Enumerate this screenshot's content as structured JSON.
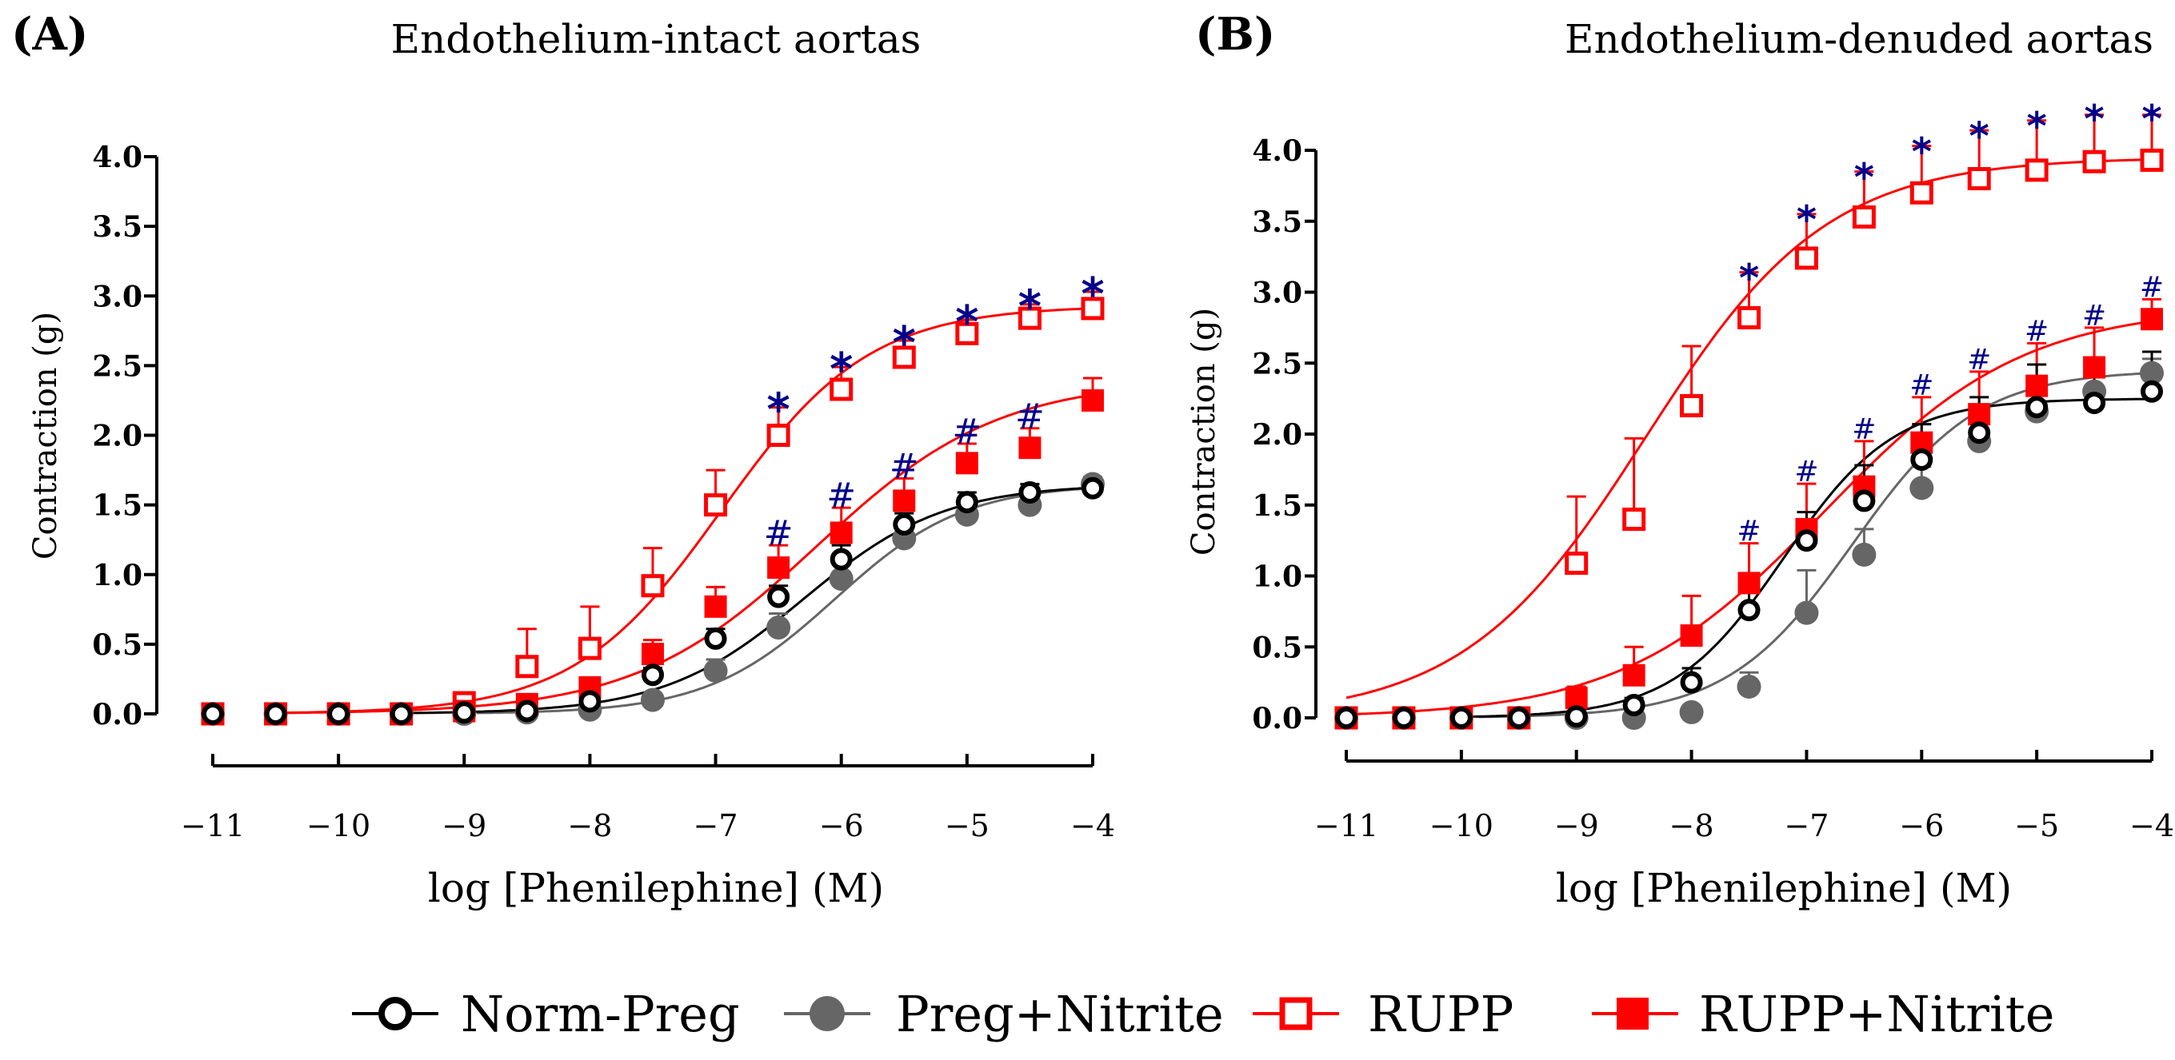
{
  "chart_data": [
    {
      "type": "line",
      "panel_label": "(A)",
      "title": "Endothelium-intact aortas",
      "xlabel": "log [Phenilephine] (M)",
      "ylabel": "Contraction (g)",
      "xlim": [
        -11,
        -4
      ],
      "ylim": [
        0,
        4.0
      ],
      "x_ticks": [
        "−11",
        "−10",
        "−9",
        "−8",
        "−7",
        "−6",
        "−5",
        "−4"
      ],
      "y_ticks": [
        "0.0",
        "0.5",
        "1.0",
        "1.5",
        "2.0",
        "2.5",
        "3.0",
        "3.5",
        "4.0"
      ],
      "x": [
        -11,
        -10.5,
        -10,
        -9.5,
        -9,
        -8.5,
        -8,
        -7.5,
        -7,
        -6.5,
        -6,
        -5.5,
        -5,
        -4.5,
        -4
      ],
      "series": [
        {
          "name": "Norm-Preg",
          "values": [
            0,
            0,
            0,
            0,
            0.01,
            0.02,
            0.09,
            0.28,
            0.54,
            0.84,
            1.11,
            1.36,
            1.52,
            1.59,
            1.62
          ],
          "errors": [
            0,
            0,
            0,
            0,
            0.01,
            0.02,
            0.04,
            0.05,
            0.07,
            0.08,
            0.1,
            0.08,
            0.07,
            0.06,
            0.05
          ],
          "fit": {
            "bottom": 0,
            "top": 1.65,
            "logEC50": -6.3,
            "hill": 0.78
          }
        },
        {
          "name": "Preg+Nitrite",
          "values": [
            0,
            0,
            0,
            0,
            0,
            0.01,
            0.03,
            0.1,
            0.31,
            0.62,
            0.97,
            1.26,
            1.43,
            1.5,
            1.65
          ],
          "errors": [
            0,
            0,
            0,
            0,
            0,
            0.01,
            0.02,
            0.04,
            0.08,
            0.1,
            0.12,
            0.1,
            0.09,
            0.08,
            0.05
          ],
          "fit": {
            "bottom": 0,
            "top": 1.65,
            "logEC50": -6.05,
            "hill": 0.85
          }
        },
        {
          "name": "RUPP",
          "values": [
            0,
            0,
            0,
            0,
            0.08,
            0.34,
            0.47,
            0.92,
            1.5,
            2.0,
            2.33,
            2.56,
            2.73,
            2.84,
            2.91
          ],
          "errors": [
            0,
            0,
            0,
            0,
            0.03,
            0.27,
            0.3,
            0.27,
            0.25,
            0.2,
            0.16,
            0.12,
            0.1,
            0.1,
            0.12
          ],
          "fit": {
            "bottom": 0,
            "top": 2.93,
            "logEC50": -6.95,
            "hill": 0.74
          }
        },
        {
          "name": "RUPP+Nitrite",
          "values": [
            0,
            0,
            0,
            0,
            0.02,
            0.07,
            0.19,
            0.43,
            0.77,
            1.05,
            1.3,
            1.53,
            1.8,
            1.91,
            2.25
          ],
          "errors": [
            0,
            0,
            0,
            0,
            0.02,
            0.04,
            0.06,
            0.1,
            0.14,
            0.16,
            0.18,
            0.16,
            0.14,
            0.14,
            0.16
          ],
          "fit": {
            "bottom": 0,
            "top": 2.4,
            "logEC50": -6.2,
            "hill": 0.6
          }
        }
      ],
      "annotations": [
        {
          "x": -6.5,
          "y": 2.2,
          "text": "*"
        },
        {
          "x": -6,
          "y": 2.49,
          "text": "*"
        },
        {
          "x": -5.5,
          "y": 2.68,
          "text": "*"
        },
        {
          "x": -5,
          "y": 2.83,
          "text": "*"
        },
        {
          "x": -4.5,
          "y": 2.94,
          "text": "*"
        },
        {
          "x": -4,
          "y": 3.03,
          "text": "*"
        },
        {
          "x": -6.5,
          "y": 1.21,
          "text": "#"
        },
        {
          "x": -6,
          "y": 1.48,
          "text": "#"
        },
        {
          "x": -5.5,
          "y": 1.69,
          "text": "#"
        },
        {
          "x": -5,
          "y": 1.94,
          "text": "#"
        },
        {
          "x": -4.5,
          "y": 2.05,
          "text": "#"
        }
      ]
    },
    {
      "type": "line",
      "panel_label": "(B)",
      "title": "Endothelium-denuded aortas",
      "xlabel": "log [Phenilephine] (M)",
      "ylabel": "Contraction (g)",
      "xlim": [
        -11,
        -4
      ],
      "ylim": [
        0,
        4.0
      ],
      "x_ticks": [
        "−11",
        "−10",
        "−9",
        "−8",
        "−7",
        "−6",
        "−5",
        "−4"
      ],
      "y_ticks": [
        "0.0",
        "0.5",
        "1.0",
        "1.5",
        "2.0",
        "2.5",
        "3.0",
        "3.5",
        "4.0"
      ],
      "x": [
        -11,
        -10.5,
        -10,
        -9.5,
        -9,
        -8.5,
        -8,
        -7.5,
        -7,
        -6.5,
        -6,
        -5.5,
        -5,
        -4.5,
        -4
      ],
      "series": [
        {
          "name": "Norm-Preg",
          "values": [
            0,
            0,
            0,
            0,
            0.01,
            0.09,
            0.25,
            0.76,
            1.25,
            1.53,
            1.82,
            2.01,
            2.19,
            2.22,
            2.3
          ],
          "errors": [
            0,
            0,
            0,
            0,
            0.02,
            0.05,
            0.1,
            0.18,
            0.2,
            0.25,
            0.25,
            0.25,
            0.3,
            0.3,
            0.28
          ],
          "fit": {
            "bottom": 0,
            "top": 2.25,
            "logEC50": -7.2,
            "hill": 0.9
          }
        },
        {
          "name": "Preg+Nitrite",
          "values": [
            0,
            0,
            0,
            0,
            0,
            0,
            0.04,
            0.22,
            0.74,
            1.15,
            1.62,
            1.95,
            2.16,
            2.3,
            2.43
          ],
          "errors": [
            0,
            0,
            0,
            0,
            0,
            0,
            0.02,
            0.1,
            0.3,
            0.18,
            0.15,
            0.15,
            0.15,
            0.12,
            0.1
          ],
          "fit": {
            "bottom": 0,
            "top": 2.45,
            "logEC50": -6.6,
            "hill": 0.8
          }
        },
        {
          "name": "RUPP",
          "values": [
            0,
            0,
            0,
            0,
            1.09,
            1.4,
            2.2,
            2.82,
            3.24,
            3.53,
            3.7,
            3.8,
            3.86,
            3.92,
            3.93
          ],
          "errors": [
            0,
            0,
            0,
            0,
            0.47,
            0.57,
            0.42,
            0.32,
            0.31,
            0.32,
            0.33,
            0.34,
            0.35,
            0.33,
            0.32
          ],
          "fit": {
            "bottom": 0,
            "top": 3.95,
            "logEC50": -8.4,
            "hill": 0.55
          }
        },
        {
          "name": "RUPP+Nitrite",
          "values": [
            0,
            0,
            0,
            0,
            0.14,
            0.3,
            0.58,
            0.95,
            1.33,
            1.63,
            1.94,
            2.14,
            2.34,
            2.47,
            2.81
          ],
          "errors": [
            0,
            0,
            0,
            0,
            0.08,
            0.2,
            0.28,
            0.28,
            0.32,
            0.32,
            0.32,
            0.3,
            0.3,
            0.28,
            0.14
          ],
          "fit": {
            "bottom": 0,
            "top": 2.9,
            "logEC50": -6.85,
            "hill": 0.5
          }
        }
      ],
      "annotations": [
        {
          "x": -7.5,
          "y": 3.13,
          "text": "*"
        },
        {
          "x": -7,
          "y": 3.54,
          "text": "*"
        },
        {
          "x": -6.5,
          "y": 3.84,
          "text": "*"
        },
        {
          "x": -6,
          "y": 4.02,
          "text": "*"
        },
        {
          "x": -5.5,
          "y": 4.13,
          "text": "*"
        },
        {
          "x": -5,
          "y": 4.2,
          "text": "*"
        },
        {
          "x": -4.5,
          "y": 4.25,
          "text": "*"
        },
        {
          "x": -4,
          "y": 4.25,
          "text": "*"
        },
        {
          "x": -7.5,
          "y": 1.25,
          "text": "#"
        },
        {
          "x": -7,
          "y": 1.67,
          "text": "#"
        },
        {
          "x": -6.5,
          "y": 1.97,
          "text": "#"
        },
        {
          "x": -6,
          "y": 2.28,
          "text": "#"
        },
        {
          "x": -5.5,
          "y": 2.46,
          "text": "#"
        },
        {
          "x": -5,
          "y": 2.66,
          "text": "#"
        },
        {
          "x": -4.5,
          "y": 2.77,
          "text": "#"
        },
        {
          "x": -4,
          "y": 2.97,
          "text": "#"
        }
      ]
    }
  ],
  "legend": {
    "position": "bottom-center",
    "items": [
      "Norm-Preg",
      "Preg+Nitrite",
      "RUPP",
      "RUPP+Nitrite"
    ]
  },
  "colors": {
    "norm_preg": "#000000",
    "preg_nitrite": "#666666",
    "rupp": "#ff0000",
    "rupp_nitrite": "#ff0000",
    "annotation": "#00008b"
  }
}
